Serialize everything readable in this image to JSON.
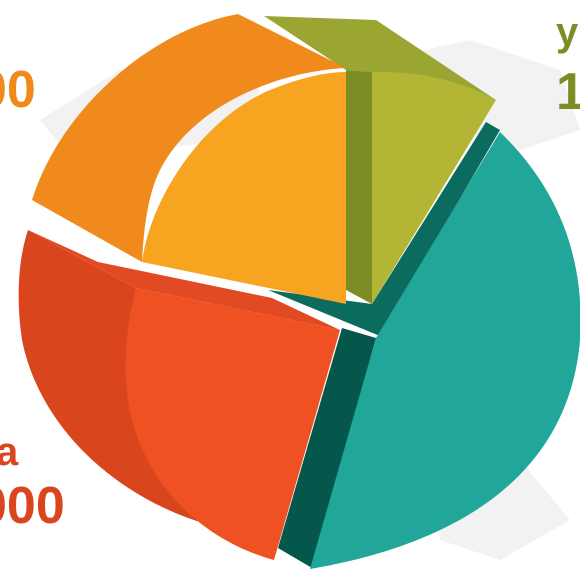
{
  "chart_data": {
    "type": "pie",
    "title": "",
    "slices": [
      {
        "color_top": "#b3b535",
        "color_side": "#7e8c26",
        "color_edge": "#9aa532",
        "share_pct": 9
      },
      {
        "color_top": "#21a79a",
        "color_side": "#0b6b5e",
        "color_edge": "#04574a",
        "share_pct": 44
      },
      {
        "color_top": "#ef5122",
        "color_side": "#d9461e",
        "color_edge": "#e24a23",
        "share_pct": 23
      },
      {
        "color_top": "#f7a520",
        "color_side": "#f08a1c",
        "color_edge": "#f39a1f",
        "share_pct": 24
      }
    ]
  },
  "labels": {
    "top_right_name": "y",
    "top_right_value": "1",
    "top_left_value": "00",
    "bottom_left_name": "a",
    "bottom_left_value": "000"
  },
  "colors": {
    "background": "#ffffff"
  }
}
